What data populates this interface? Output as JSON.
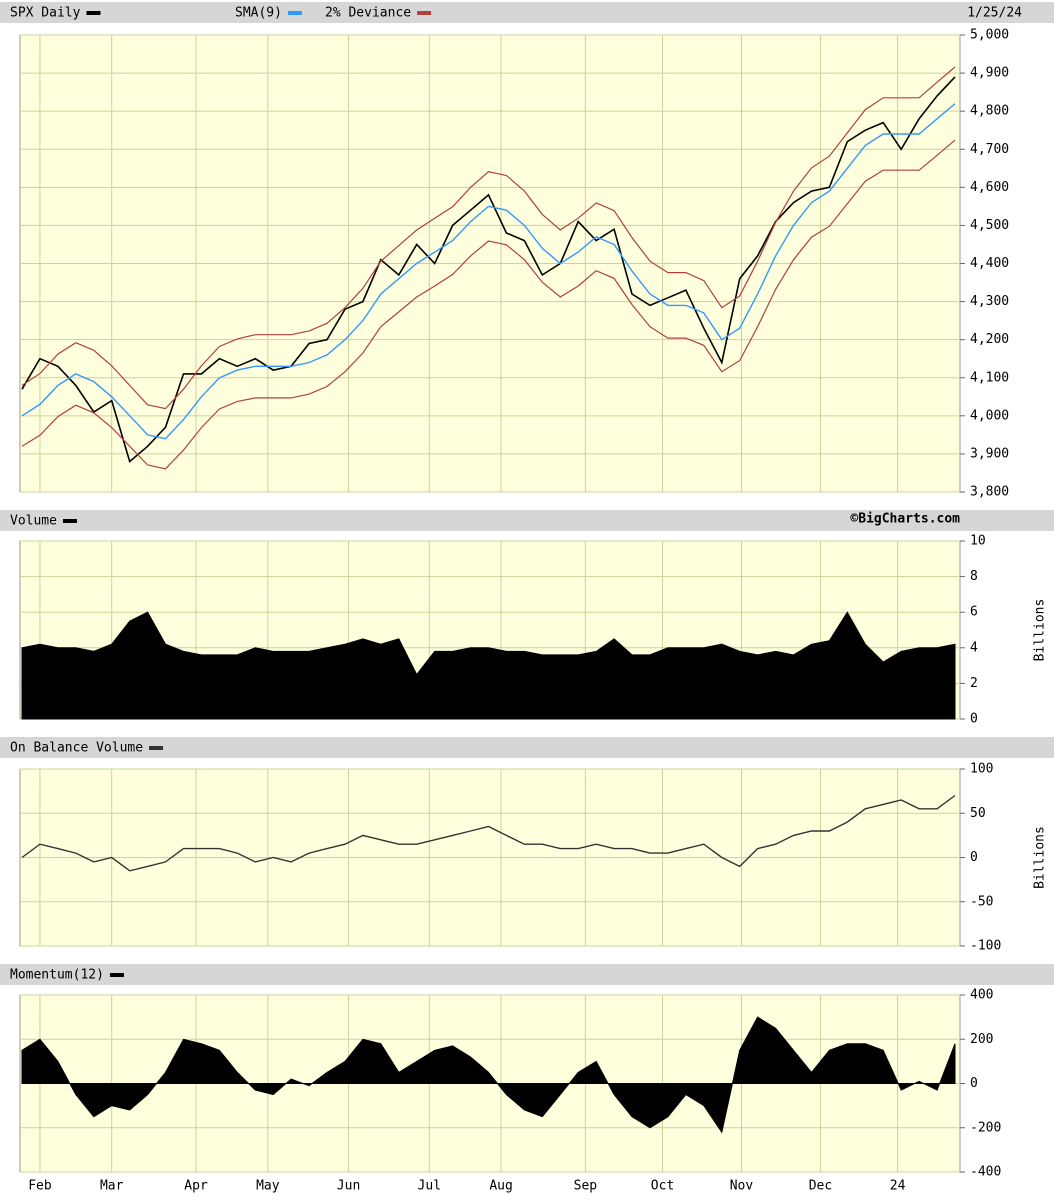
{
  "x_axis": {
    "xlim": [
      0,
      52
    ],
    "xticks": [
      {
        "value": 1.0,
        "label": "Feb"
      },
      {
        "value": 5.0,
        "label": "Mar"
      },
      {
        "value": 9.7,
        "label": "Apr"
      },
      {
        "value": 13.7,
        "label": "May"
      },
      {
        "value": 18.2,
        "label": "Jun"
      },
      {
        "value": 22.7,
        "label": "Jul"
      },
      {
        "value": 26.7,
        "label": "Aug"
      },
      {
        "value": 31.4,
        "label": "Sep"
      },
      {
        "value": 35.7,
        "label": "Oct"
      },
      {
        "value": 40.1,
        "label": "Nov"
      },
      {
        "value": 44.5,
        "label": "Dec"
      },
      {
        "value": 48.8,
        "label": "24"
      }
    ]
  },
  "chart_data": [
    {
      "type": "line",
      "date": "1/25/24",
      "grid": true,
      "ylim": [
        3800,
        5000
      ],
      "yticks": [
        {
          "value": 3800,
          "label": "3,800"
        },
        {
          "value": 3900,
          "label": "3,900"
        },
        {
          "value": 4000,
          "label": "4,000"
        },
        {
          "value": 4100,
          "label": "4,100"
        },
        {
          "value": 4200,
          "label": "4,200"
        },
        {
          "value": 4300,
          "label": "4,300"
        },
        {
          "value": 4400,
          "label": "4,400"
        },
        {
          "value": 4500,
          "label": "4,500"
        },
        {
          "value": 4600,
          "label": "4,600"
        },
        {
          "value": 4700,
          "label": "4,700"
        },
        {
          "value": 4800,
          "label": "4,800"
        },
        {
          "value": 4900,
          "label": "4,900"
        },
        {
          "value": 5000,
          "label": "5,000"
        }
      ],
      "series": [
        {
          "name": "SPX Daily",
          "color": "#000000",
          "values": [
            4070,
            4150,
            4130,
            4080,
            4010,
            4040,
            3880,
            3920,
            3970,
            4110,
            4110,
            4150,
            4130,
            4150,
            4120,
            4130,
            4190,
            4200,
            4280,
            4300,
            4410,
            4370,
            4450,
            4400,
            4500,
            4540,
            4580,
            4480,
            4460,
            4370,
            4400,
            4510,
            4460,
            4490,
            4320,
            4290,
            4310,
            4330,
            4230,
            4140,
            4360,
            4420,
            4510,
            4560,
            4590,
            4600,
            4720,
            4750,
            4770,
            4700,
            4780,
            4840,
            4890
          ]
        },
        {
          "name": "SMA(9)",
          "color": "#3399ff",
          "values": [
            4000,
            4030,
            4080,
            4110,
            4090,
            4050,
            4000,
            3950,
            3940,
            3990,
            4050,
            4100,
            4120,
            4130,
            4130,
            4130,
            4140,
            4160,
            4200,
            4250,
            4320,
            4360,
            4400,
            4430,
            4460,
            4510,
            4550,
            4540,
            4500,
            4440,
            4400,
            4430,
            4470,
            4450,
            4380,
            4320,
            4290,
            4290,
            4270,
            4200,
            4230,
            4320,
            4420,
            4500,
            4560,
            4590,
            4650,
            4710,
            4740,
            4740,
            4740,
            4780,
            4820
          ]
        },
        {
          "name": "2% Deviance",
          "color": "#b04040",
          "upper": [
            4080,
            4111,
            4162,
            4192,
            4172,
            4131,
            4080,
            4029,
            4019,
            4070,
            4131,
            4182,
            4202,
            4213,
            4213,
            4213,
            4223,
            4243,
            4284,
            4335,
            4406,
            4447,
            4488,
            4519,
            4549,
            4600,
            4641,
            4631,
            4590,
            4529,
            4488,
            4519,
            4559,
            4539,
            4468,
            4406,
            4376,
            4376,
            4355,
            4284,
            4315,
            4406,
            4508,
            4590,
            4651,
            4682,
            4743,
            4804,
            4835,
            4835,
            4835,
            4876,
            4916
          ],
          "lower": [
            3920,
            3949,
            3998,
            4028,
            4008,
            3969,
            3920,
            3871,
            3861,
            3910,
            3969,
            4018,
            4038,
            4047,
            4047,
            4047,
            4057,
            4077,
            4116,
            4165,
            4234,
            4273,
            4312,
            4341,
            4371,
            4420,
            4459,
            4449,
            4410,
            4351,
            4312,
            4341,
            4381,
            4361,
            4292,
            4234,
            4204,
            4204,
            4185,
            4116,
            4145,
            4234,
            4332,
            4410,
            4469,
            4498,
            4557,
            4616,
            4645,
            4645,
            4645,
            4684,
            4724
          ]
        }
      ]
    },
    {
      "type": "area",
      "source": "©BigCharts.com",
      "y_label": "Billions",
      "grid": true,
      "ylim": [
        0,
        10
      ],
      "yticks": [
        0,
        2,
        4,
        6,
        8,
        10
      ],
      "series": [
        {
          "name": "Volume",
          "color": "#000000",
          "values": [
            4,
            4.2,
            4,
            4,
            3.8,
            4.2,
            5.5,
            6,
            4.2,
            3.8,
            3.6,
            3.6,
            3.6,
            4,
            3.8,
            3.8,
            3.8,
            4,
            4.2,
            4.5,
            4.2,
            4.5,
            2.5,
            3.8,
            3.8,
            4,
            4,
            3.8,
            3.8,
            3.6,
            3.6,
            3.6,
            3.8,
            4.5,
            3.6,
            3.6,
            4,
            4,
            4,
            4.2,
            3.8,
            3.6,
            3.8,
            3.6,
            4.2,
            4.4,
            6,
            4.2,
            3.2,
            3.8,
            4,
            4,
            4.2
          ]
        }
      ]
    },
    {
      "type": "line",
      "y_label": "Billions",
      "grid": true,
      "ylim": [
        -100,
        100
      ],
      "yticks": [
        -100,
        -50,
        0,
        50,
        100
      ],
      "series": [
        {
          "name": "On Balance Volume",
          "color": "#333333",
          "values": [
            0,
            15,
            10,
            5,
            -5,
            0,
            -15,
            -10,
            -5,
            10,
            10,
            10,
            5,
            -5,
            0,
            -5,
            5,
            10,
            15,
            25,
            20,
            15,
            15,
            20,
            25,
            30,
            35,
            25,
            15,
            15,
            10,
            10,
            15,
            10,
            10,
            5,
            5,
            10,
            15,
            0,
            -10,
            10,
            15,
            25,
            30,
            30,
            40,
            55,
            60,
            65,
            55,
            55,
            70
          ]
        }
      ]
    },
    {
      "type": "area",
      "grid": true,
      "ylim": [
        -400,
        400
      ],
      "yticks": [
        -400,
        -200,
        0,
        200,
        400
      ],
      "series": [
        {
          "name": "Momentum(12)",
          "color": "#000000",
          "values": [
            150,
            200,
            100,
            -50,
            -150,
            -100,
            -120,
            -50,
            50,
            200,
            180,
            150,
            50,
            -30,
            -50,
            20,
            -10,
            50,
            100,
            200,
            180,
            50,
            100,
            150,
            170,
            120,
            50,
            -50,
            -120,
            -150,
            -50,
            50,
            100,
            -50,
            -150,
            -200,
            -150,
            -50,
            -100,
            -220,
            150,
            300,
            250,
            150,
            50,
            150,
            180,
            180,
            150,
            -30,
            10,
            -30,
            180
          ]
        }
      ]
    }
  ]
}
